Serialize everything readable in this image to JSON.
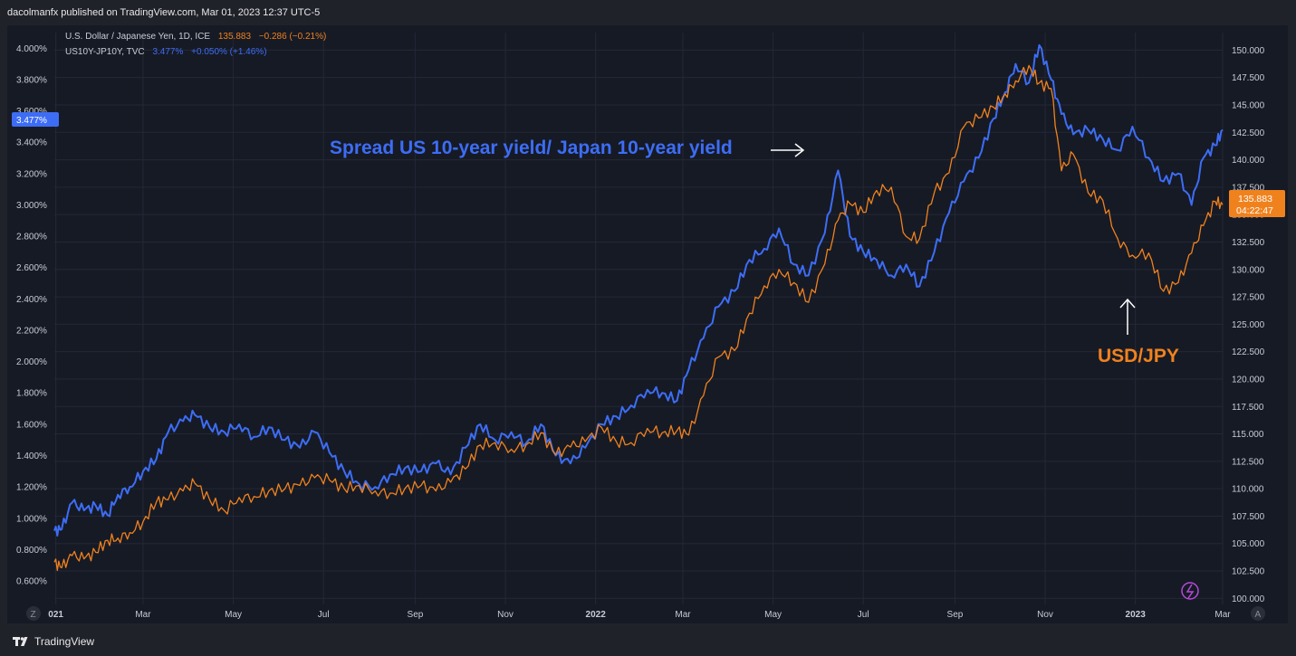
{
  "header": {
    "publisher": "dacolmanfx published on TradingView.com, Mar 01, 2023 12:37 UTC-5"
  },
  "legend": {
    "usdjpy": {
      "name": "U.S. Dollar / Japanese Yen, 1D, ICE",
      "price": "135.883",
      "change": "−0.286 (−0.21%)"
    },
    "spread": {
      "name": "US10Y-JP10Y, TVC",
      "price": "3.477%",
      "change": "+0.050% (+1.46%)"
    }
  },
  "annotations": {
    "spread_label": "Spread US 10-year yield/ Japan 10-year yield",
    "usdjpy_label": "USD/JPY"
  },
  "badges": {
    "left_value": "3.477%",
    "right_value": "135.883",
    "right_countdown": "04:22:47"
  },
  "corner_buttons": {
    "left": "Z",
    "right": "A"
  },
  "footer": {
    "brand": "TradingView"
  },
  "colors": {
    "spread": "#3d6df5",
    "usdjpy": "#f0821e",
    "background": "#161a25",
    "frame": "#20222a"
  },
  "chart_data": {
    "type": "line",
    "x_range": [
      "2020-12-31",
      "2023-03-01"
    ],
    "x_ticks": [
      {
        "date": "2021-01-01",
        "label": "021",
        "bold": true
      },
      {
        "date": "2021-03-01",
        "label": "Mar"
      },
      {
        "date": "2021-05-01",
        "label": "May"
      },
      {
        "date": "2021-07-01",
        "label": "Jul"
      },
      {
        "date": "2021-09-01",
        "label": "Sep"
      },
      {
        "date": "2021-11-01",
        "label": "Nov"
      },
      {
        "date": "2022-01-01",
        "label": "2022",
        "bold": true
      },
      {
        "date": "2022-03-01",
        "label": "Mar"
      },
      {
        "date": "2022-05-01",
        "label": "May"
      },
      {
        "date": "2022-07-01",
        "label": "Jul"
      },
      {
        "date": "2022-09-01",
        "label": "Sep"
      },
      {
        "date": "2022-11-01",
        "label": "Nov"
      },
      {
        "date": "2023-01-01",
        "label": "2023",
        "bold": true
      },
      {
        "date": "2023-03-01",
        "label": "Mar"
      }
    ],
    "left_axis": {
      "ylim": [
        0.45,
        4.1
      ],
      "ticks": [
        "0.600%",
        "0.800%",
        "1.000%",
        "1.200%",
        "1.400%",
        "1.600%",
        "1.800%",
        "2.000%",
        "2.200%",
        "2.400%",
        "2.600%",
        "2.800%",
        "3.000%",
        "3.200%",
        "3.400%",
        "3.600%",
        "3.800%",
        "4.000%"
      ],
      "tick_values": [
        0.6,
        0.8,
        1.0,
        1.2,
        1.4,
        1.6,
        1.8,
        2.0,
        2.2,
        2.4,
        2.6,
        2.8,
        3.0,
        3.2,
        3.4,
        3.6,
        3.8,
        4.0
      ]
    },
    "right_axis": {
      "ylim": [
        99.45,
        151.6
      ],
      "ticks": [
        "100.000",
        "102.500",
        "105.000",
        "107.500",
        "110.000",
        "112.500",
        "115.000",
        "117.500",
        "120.000",
        "122.500",
        "125.000",
        "127.500",
        "130.000",
        "132.500",
        "135.000",
        "137.500",
        "140.000",
        "142.500",
        "145.000",
        "147.500",
        "150.000"
      ],
      "tick_values": [
        100,
        102.5,
        105,
        107.5,
        110,
        112.5,
        115,
        117.5,
        120,
        122.5,
        125,
        127.5,
        130,
        132.5,
        135,
        137.5,
        140,
        142.5,
        145,
        147.5,
        150
      ]
    },
    "series": [
      {
        "name": "US10Y-JP10Y, TVC",
        "axis": "left",
        "color": "#3d6df5",
        "x": [
          "2020-12-31",
          "2021-01-05",
          "2021-01-12",
          "2021-01-20",
          "2021-01-28",
          "2021-02-05",
          "2021-02-12",
          "2021-02-20",
          "2021-03-01",
          "2021-03-10",
          "2021-03-18",
          "2021-03-28",
          "2021-04-05",
          "2021-04-15",
          "2021-04-25",
          "2021-05-05",
          "2021-05-15",
          "2021-05-25",
          "2021-06-05",
          "2021-06-15",
          "2021-06-25",
          "2021-07-05",
          "2021-07-15",
          "2021-07-25",
          "2021-08-05",
          "2021-08-15",
          "2021-08-25",
          "2021-09-05",
          "2021-09-15",
          "2021-09-25",
          "2021-10-05",
          "2021-10-15",
          "2021-10-25",
          "2021-11-05",
          "2021-11-15",
          "2021-11-25",
          "2021-12-05",
          "2021-12-15",
          "2021-12-25",
          "2022-01-05",
          "2022-01-15",
          "2022-01-25",
          "2022-02-05",
          "2022-02-15",
          "2022-02-25",
          "2022-03-05",
          "2022-03-15",
          "2022-03-25",
          "2022-04-05",
          "2022-04-15",
          "2022-04-25",
          "2022-05-05",
          "2022-05-15",
          "2022-05-25",
          "2022-06-05",
          "2022-06-14",
          "2022-06-22",
          "2022-07-01",
          "2022-07-10",
          "2022-07-20",
          "2022-07-30",
          "2022-08-08",
          "2022-08-18",
          "2022-08-28",
          "2022-09-07",
          "2022-09-17",
          "2022-09-27",
          "2022-10-05",
          "2022-10-12",
          "2022-10-21",
          "2022-10-28",
          "2022-11-05",
          "2022-11-12",
          "2022-11-20",
          "2022-11-30",
          "2022-12-10",
          "2022-12-20",
          "2022-12-30",
          "2023-01-10",
          "2023-01-20",
          "2023-01-30",
          "2023-02-08",
          "2023-02-16",
          "2023-02-24",
          "2023-03-01"
        ],
        "values": [
          0.92,
          0.93,
          1.1,
          1.05,
          1.08,
          1.02,
          1.15,
          1.2,
          1.3,
          1.38,
          1.55,
          1.62,
          1.66,
          1.58,
          1.55,
          1.6,
          1.52,
          1.58,
          1.5,
          1.45,
          1.55,
          1.42,
          1.3,
          1.22,
          1.2,
          1.28,
          1.32,
          1.3,
          1.35,
          1.28,
          1.45,
          1.6,
          1.5,
          1.55,
          1.48,
          1.6,
          1.4,
          1.35,
          1.45,
          1.6,
          1.65,
          1.72,
          1.82,
          1.8,
          1.75,
          1.95,
          2.15,
          2.35,
          2.45,
          2.65,
          2.72,
          2.85,
          2.62,
          2.55,
          2.82,
          3.22,
          2.8,
          2.7,
          2.65,
          2.55,
          2.62,
          2.48,
          2.7,
          2.95,
          3.15,
          3.3,
          3.55,
          3.72,
          3.9,
          3.78,
          4.02,
          3.8,
          3.58,
          3.45,
          3.48,
          3.42,
          3.35,
          3.5,
          3.3,
          3.15,
          3.2,
          3.0,
          3.3,
          3.38,
          3.48
        ]
      },
      {
        "name": "U.S. Dollar / Japanese Yen, 1D, ICE",
        "axis": "right",
        "color": "#f0821e",
        "x": [
          "2020-12-31",
          "2021-01-05",
          "2021-01-12",
          "2021-01-20",
          "2021-01-28",
          "2021-02-05",
          "2021-02-12",
          "2021-02-20",
          "2021-03-01",
          "2021-03-10",
          "2021-03-18",
          "2021-03-28",
          "2021-04-05",
          "2021-04-15",
          "2021-04-25",
          "2021-05-05",
          "2021-05-15",
          "2021-05-25",
          "2021-06-05",
          "2021-06-15",
          "2021-06-25",
          "2021-07-05",
          "2021-07-15",
          "2021-07-25",
          "2021-08-05",
          "2021-08-15",
          "2021-08-25",
          "2021-09-05",
          "2021-09-15",
          "2021-09-25",
          "2021-10-05",
          "2021-10-15",
          "2021-10-25",
          "2021-11-05",
          "2021-11-15",
          "2021-11-25",
          "2021-12-05",
          "2021-12-15",
          "2021-12-25",
          "2022-01-05",
          "2022-01-15",
          "2022-01-25",
          "2022-02-05",
          "2022-02-15",
          "2022-02-25",
          "2022-03-05",
          "2022-03-15",
          "2022-03-25",
          "2022-04-05",
          "2022-04-15",
          "2022-04-25",
          "2022-05-05",
          "2022-05-15",
          "2022-05-25",
          "2022-06-05",
          "2022-06-14",
          "2022-06-22",
          "2022-07-01",
          "2022-07-10",
          "2022-07-20",
          "2022-07-30",
          "2022-08-08",
          "2022-08-18",
          "2022-08-28",
          "2022-09-07",
          "2022-09-17",
          "2022-09-27",
          "2022-10-05",
          "2022-10-12",
          "2022-10-21",
          "2022-10-28",
          "2022-11-05",
          "2022-11-12",
          "2022-11-20",
          "2022-11-30",
          "2022-12-10",
          "2022-12-20",
          "2022-12-30",
          "2023-01-10",
          "2023-01-20",
          "2023-01-30",
          "2023-02-08",
          "2023-02-16",
          "2023-02-24",
          "2023-03-01"
        ],
        "values": [
          103.3,
          102.8,
          103.9,
          103.6,
          104.2,
          105.3,
          105.5,
          106.0,
          107.0,
          108.8,
          109.0,
          109.8,
          110.5,
          109.0,
          108.0,
          109.2,
          109.3,
          109.8,
          110.0,
          110.3,
          111.0,
          110.8,
          110.0,
          110.3,
          109.8,
          109.6,
          110.0,
          110.3,
          109.8,
          110.6,
          111.8,
          114.0,
          114.2,
          113.6,
          114.0,
          115.1,
          113.1,
          113.8,
          114.3,
          115.6,
          114.3,
          114.2,
          115.5,
          115.1,
          115.3,
          114.9,
          118.5,
          122.0,
          122.6,
          126.0,
          128.5,
          130.0,
          128.8,
          127.0,
          130.5,
          134.5,
          136.0,
          135.2,
          137.2,
          137.5,
          133.0,
          132.8,
          137.0,
          138.8,
          143.0,
          143.8,
          144.8,
          146.0,
          147.2,
          148.6,
          147.0,
          146.5,
          139.0,
          140.5,
          137.0,
          136.3,
          132.8,
          131.3,
          131.5,
          128.0,
          128.8,
          131.5,
          134.0,
          136.2,
          135.9
        ]
      }
    ]
  }
}
